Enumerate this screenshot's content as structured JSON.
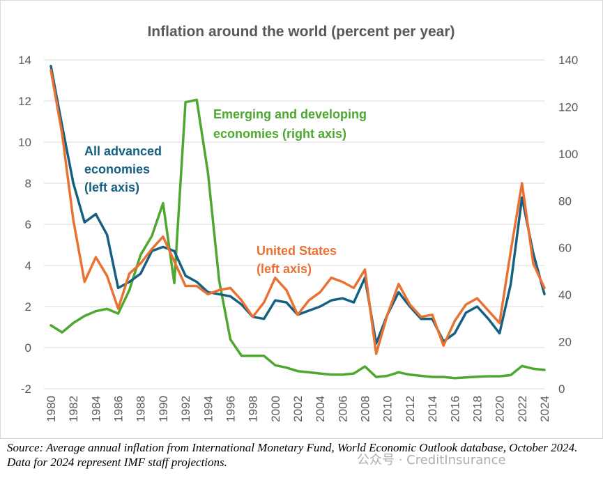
{
  "chart_data": {
    "type": "line",
    "title": "Inflation around the world (percent per year)",
    "x": [
      1980,
      1981,
      1982,
      1983,
      1984,
      1985,
      1986,
      1987,
      1988,
      1989,
      1990,
      1991,
      1992,
      1993,
      1994,
      1995,
      1996,
      1997,
      1998,
      1999,
      2000,
      2001,
      2002,
      2003,
      2004,
      2005,
      2006,
      2007,
      2008,
      2009,
      2010,
      2011,
      2012,
      2013,
      2014,
      2015,
      2016,
      2017,
      2018,
      2019,
      2020,
      2021,
      2022,
      2023,
      2024
    ],
    "x_tick_labels": [
      "1980",
      "1982",
      "1984",
      "1986",
      "1988",
      "1990",
      "1992",
      "1994",
      "1996",
      "1998",
      "2000",
      "2002",
      "2004",
      "2006",
      "2008",
      "2010",
      "2012",
      "2014",
      "2016",
      "2018",
      "2020",
      "2022",
      "2024"
    ],
    "left_axis": {
      "ylim": [
        -2,
        14
      ],
      "ticks": [
        "-2",
        "0",
        "2",
        "4",
        "6",
        "8",
        "10",
        "12",
        "14"
      ],
      "tick_values": [
        -2,
        0,
        2,
        4,
        6,
        8,
        10,
        12,
        14
      ]
    },
    "right_axis": {
      "ylim": [
        0,
        140
      ],
      "ticks": [
        "0",
        "20",
        "40",
        "60",
        "80",
        "100",
        "120",
        "140"
      ],
      "tick_values": [
        0,
        20,
        40,
        60,
        80,
        100,
        120,
        140
      ]
    },
    "grid": "horizontal",
    "series": [
      {
        "name": "Emerging and developing economies (right axis)",
        "axis": "right",
        "color": "#4ea72e",
        "values": [
          27,
          24,
          28,
          31,
          33,
          34,
          32,
          42,
          57,
          65,
          79,
          45,
          122,
          123,
          92,
          46,
          21,
          14,
          14,
          14,
          10,
          9,
          7.5,
          7,
          6.5,
          6,
          6,
          6.5,
          9.5,
          5,
          5.5,
          7,
          6,
          5.5,
          5,
          5,
          4.5,
          4.8,
          5.1,
          5.3,
          5.3,
          5.8,
          9.7,
          8.5,
          8
        ]
      },
      {
        "name": "All advanced economies (left axis)",
        "axis": "left",
        "color": "#156082",
        "values": [
          13.7,
          10.8,
          8.0,
          6.1,
          6.5,
          5.5,
          2.9,
          3.2,
          3.6,
          4.7,
          4.9,
          4.7,
          3.5,
          3.2,
          2.7,
          2.6,
          2.5,
          2.1,
          1.5,
          1.4,
          2.3,
          2.2,
          1.6,
          1.8,
          2.0,
          2.3,
          2.4,
          2.2,
          3.4,
          0.2,
          1.6,
          2.7,
          2.0,
          1.4,
          1.4,
          0.3,
          0.7,
          1.7,
          2.0,
          1.4,
          0.7,
          3.1,
          7.3,
          4.6,
          2.6
        ]
      },
      {
        "name": "United States (left axis)",
        "axis": "left",
        "color": "#e97132",
        "values": [
          13.5,
          10.4,
          6.2,
          3.2,
          4.4,
          3.5,
          1.9,
          3.6,
          4.1,
          4.8,
          5.4,
          4.2,
          3.0,
          3.0,
          2.6,
          2.8,
          2.9,
          2.3,
          1.5,
          2.2,
          3.4,
          2.8,
          1.6,
          2.3,
          2.7,
          3.4,
          3.2,
          2.9,
          3.8,
          -0.3,
          1.6,
          3.1,
          2.1,
          1.5,
          1.6,
          0.1,
          1.3,
          2.1,
          2.4,
          1.8,
          1.2,
          4.7,
          8.0,
          4.1,
          2.9
        ]
      }
    ],
    "annotations": {
      "emerging": [
        "Emerging and developing",
        "economies (right axis)"
      ],
      "advanced": [
        "All advanced",
        "economies",
        "(left axis)"
      ],
      "us": [
        "United States",
        "(left axis)"
      ]
    }
  },
  "source_note": "Source: Average annual inflation from International Monetary Fund, World Economic Outlook database, October 2024. Data for 2024 represent IMF staff projections.",
  "watermark": "公众号 · CreditInsurance"
}
